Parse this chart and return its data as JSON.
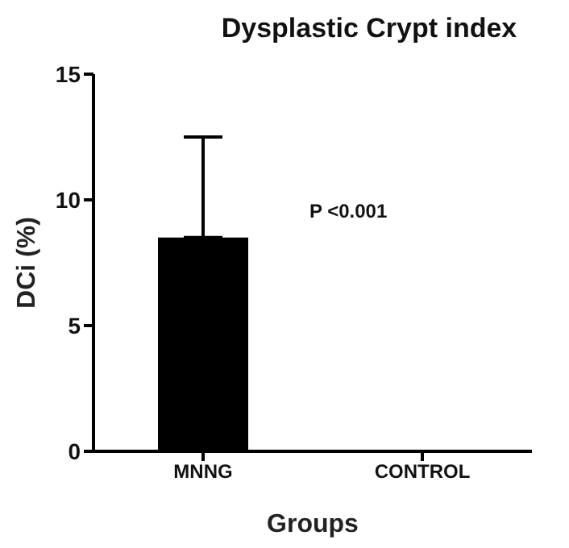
{
  "chart_data": {
    "type": "bar",
    "title": "Dysplastic Crypt index",
    "xlabel": "Groups",
    "ylabel": "DCi (%)",
    "categories": [
      "MNNG",
      "CONTROL"
    ],
    "values": [
      8.5,
      0
    ],
    "color": "#000000",
    "errors": [
      [
        8.5,
        12.5
      ],
      null
    ],
    "ylim": [
      0,
      15
    ],
    "yticks": [
      0,
      5,
      10,
      15
    ],
    "grid": false,
    "legend": false,
    "annotations": [
      "P <0.001"
    ]
  }
}
